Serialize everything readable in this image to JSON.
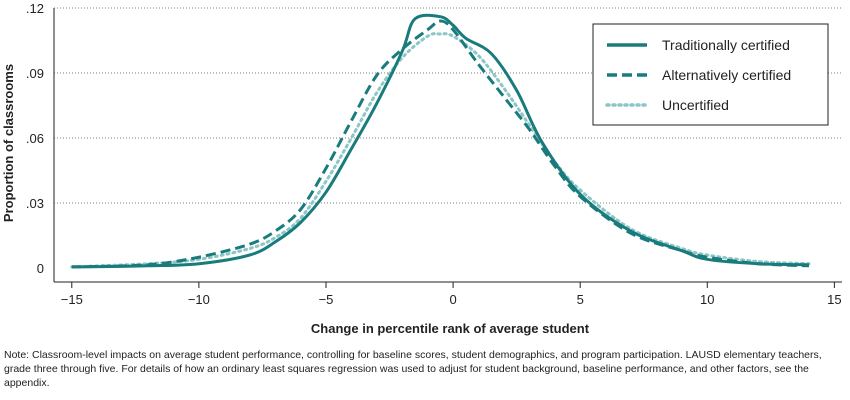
{
  "chart_data": {
    "type": "line",
    "xlabel": "Change in percentile rank of average student",
    "ylabel": "Proportion of classrooms",
    "xlim": [
      -15.7,
      15.3
    ],
    "ylim": [
      0,
      0.12
    ],
    "xticks": [
      -15,
      -10,
      -5,
      0,
      5,
      10,
      15
    ],
    "xtick_labels": [
      "−15",
      "−10",
      "−5",
      "0",
      "5",
      "10",
      "15"
    ],
    "yticks": [
      0,
      0.03,
      0.06,
      0.09,
      0.12
    ],
    "ytick_labels": [
      "0",
      ".03",
      ".06",
      ".09",
      ".12"
    ],
    "grid": "horizontal dotted",
    "legend_position": "top-right",
    "series": [
      {
        "name": "Traditionally certified",
        "color": "#1a7b7d",
        "style": "solid",
        "x": [
          -15,
          -12,
          -10,
          -8,
          -7,
          -6,
          -5,
          -4,
          -3,
          -2,
          -1.5,
          -0.5,
          0,
          0.5,
          1.5,
          2.5,
          3.5,
          5,
          7,
          9,
          10,
          12,
          14
        ],
        "y": [
          0.0005,
          0.001,
          0.002,
          0.006,
          0.012,
          0.021,
          0.035,
          0.055,
          0.076,
          0.1,
          0.115,
          0.116,
          0.112,
          0.106,
          0.099,
          0.082,
          0.058,
          0.034,
          0.017,
          0.008,
          0.004,
          0.002,
          0.0015
        ]
      },
      {
        "name": "Alternatively certified",
        "color": "#1a7b7d",
        "style": "dashed",
        "x": [
          -15,
          -12,
          -10,
          -8,
          -7,
          -6,
          -5,
          -4,
          -3,
          -2,
          -1,
          -0.5,
          0,
          1,
          2,
          3,
          4,
          5,
          7,
          9,
          10,
          12,
          14
        ],
        "y": [
          0.0005,
          0.0015,
          0.005,
          0.011,
          0.017,
          0.027,
          0.046,
          0.068,
          0.089,
          0.101,
          0.11,
          0.114,
          0.11,
          0.094,
          0.079,
          0.064,
          0.047,
          0.033,
          0.016,
          0.008,
          0.005,
          0.002,
          0.001
        ]
      },
      {
        "name": "Uncertified",
        "color": "#8cc6c6",
        "style": "dotted",
        "x": [
          -15,
          -12,
          -10,
          -8,
          -7,
          -6,
          -5,
          -4,
          -3,
          -2,
          -1,
          -0.5,
          0,
          1,
          2,
          3,
          4,
          5,
          7,
          9,
          10,
          12,
          14
        ],
        "y": [
          0.0005,
          0.002,
          0.004,
          0.009,
          0.014,
          0.023,
          0.04,
          0.06,
          0.081,
          0.097,
          0.107,
          0.108,
          0.107,
          0.098,
          0.083,
          0.066,
          0.049,
          0.036,
          0.018,
          0.009,
          0.006,
          0.003,
          0.002
        ]
      }
    ]
  },
  "note": "Note: Classroom-level impacts on average student performance, controlling for baseline scores, student demographics, and program participation. LAUSD elementary teachers, grade three through five. For details of how an ordinary least squares regression was used to adjust for student background, baseline performance, and other factors, see the appendix."
}
